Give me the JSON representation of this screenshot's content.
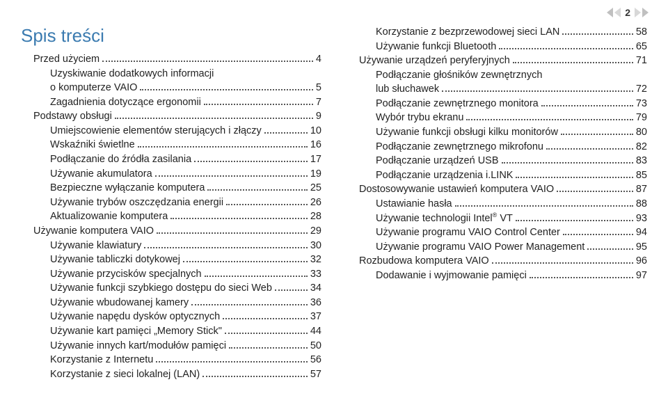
{
  "pageNumber": "2",
  "tocTitle": "Spis treści",
  "leftCol": [
    {
      "lvl": 1,
      "label": "Przed użyciem",
      "pg": "4"
    },
    {
      "lvl": 2,
      "label": "Uzyskiwanie dodatkowych informacji",
      "pg": "",
      "nobr": true
    },
    {
      "lvl": 2,
      "label": "o komputerze VAIO",
      "pg": "5"
    },
    {
      "lvl": 2,
      "label": "Zagadnienia dotyczące ergonomii",
      "pg": "7"
    },
    {
      "lvl": 1,
      "label": "Podstawy obsługi",
      "pg": "9"
    },
    {
      "lvl": 2,
      "label": "Umiejscowienie elementów sterujących i złączy",
      "pg": "10"
    },
    {
      "lvl": 2,
      "label": "Wskaźniki świetlne",
      "pg": "16"
    },
    {
      "lvl": 2,
      "label": "Podłączanie do źródła zasilania",
      "pg": "17"
    },
    {
      "lvl": 2,
      "label": "Używanie akumulatora",
      "pg": "19"
    },
    {
      "lvl": 2,
      "label": "Bezpieczne wyłączanie komputera",
      "pg": "25"
    },
    {
      "lvl": 2,
      "label": "Używanie trybów oszczędzania energii",
      "pg": "26"
    },
    {
      "lvl": 2,
      "label": "Aktualizowanie komputera",
      "pg": "28"
    },
    {
      "lvl": 1,
      "label": "Używanie komputera VAIO",
      "pg": "29"
    },
    {
      "lvl": 2,
      "label": "Używanie klawiatury",
      "pg": "30"
    },
    {
      "lvl": 2,
      "label": "Używanie tabliczki dotykowej",
      "pg": "32"
    },
    {
      "lvl": 2,
      "label": "Używanie przycisków specjalnych",
      "pg": "33"
    },
    {
      "lvl": 2,
      "label": "Używanie funkcji szybkiego dostępu do sieci Web",
      "pg": "34"
    },
    {
      "lvl": 2,
      "label": "Używanie wbudowanej kamery",
      "pg": "36"
    },
    {
      "lvl": 2,
      "label": "Używanie napędu dysków optycznych",
      "pg": "37"
    },
    {
      "lvl": 2,
      "label": "Używanie kart pamięci „Memory Stick\"",
      "pg": "44"
    },
    {
      "lvl": 2,
      "label": "Używanie innych kart/modułów pamięci",
      "pg": "50"
    },
    {
      "lvl": 2,
      "label": "Korzystanie z Internetu",
      "pg": "56"
    },
    {
      "lvl": 2,
      "label": "Korzystanie z sieci lokalnej (LAN)",
      "pg": "57"
    }
  ],
  "rightCol": [
    {
      "lvl": 2,
      "label": "Korzystanie z bezprzewodowej sieci LAN",
      "pg": "58"
    },
    {
      "lvl": 2,
      "label": "Używanie funkcji Bluetooth",
      "pg": "65"
    },
    {
      "lvl": 1,
      "label": "Używanie urządzeń peryferyjnych",
      "pg": "71"
    },
    {
      "lvl": 2,
      "label": "Podłączanie głośników zewnętrznych",
      "pg": "",
      "nobr": true
    },
    {
      "lvl": 2,
      "label": "lub słuchawek",
      "pg": "72"
    },
    {
      "lvl": 2,
      "label": "Podłączanie zewnętrznego monitora",
      "pg": "73"
    },
    {
      "lvl": 2,
      "label": "Wybór trybu ekranu",
      "pg": "79"
    },
    {
      "lvl": 2,
      "label": "Używanie funkcji obsługi kilku monitorów",
      "pg": "80"
    },
    {
      "lvl": 2,
      "label": "Podłączanie zewnętrznego mikrofonu",
      "pg": "82"
    },
    {
      "lvl": 2,
      "label": "Podłączanie urządzeń USB",
      "pg": "83"
    },
    {
      "lvl": 2,
      "label": "Podłączanie urządzenia i.LINK",
      "pg": "85"
    },
    {
      "lvl": 1,
      "label": "Dostosowywanie ustawień komputera VAIO",
      "pg": "87"
    },
    {
      "lvl": 2,
      "label": "Ustawianie hasła",
      "pg": "88"
    },
    {
      "lvl": 2,
      "label": "Używanie technologii Intel",
      "pg": "93",
      "reg": " VT",
      "prereg": true
    },
    {
      "lvl": 2,
      "label": "Używanie programu VAIO Control Center",
      "pg": "94"
    },
    {
      "lvl": 2,
      "label": "Używanie programu VAIO Power Management",
      "pg": "95"
    },
    {
      "lvl": 1,
      "label": "Rozbudowa komputera VAIO",
      "pg": "96"
    },
    {
      "lvl": 2,
      "label": "Dodawanie i wyjmowanie pamięci",
      "pg": "97"
    }
  ]
}
